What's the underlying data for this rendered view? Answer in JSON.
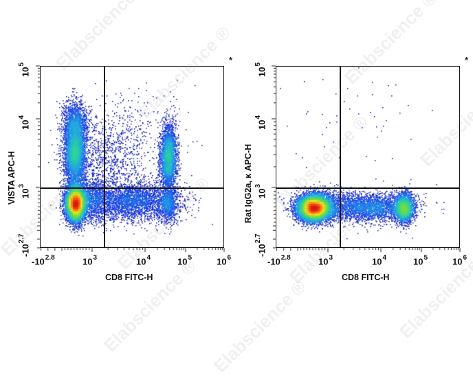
{
  "watermark": "Elabscience",
  "watermark_mark": "®",
  "chart_data": [
    {
      "type": "scatter",
      "subtype": "flow-cytometry-density-dot-plot",
      "title": "",
      "xlabel": "CD8 FITC-H",
      "ylabel": "VISTA APC-H",
      "x_scale": "biexponential",
      "y_scale": "biexponential",
      "x_ticks": [
        {
          "base": "-10",
          "exp": "2.8"
        },
        {
          "base": "10",
          "exp": "3"
        },
        {
          "base": "10",
          "exp": "4"
        },
        {
          "base": "10",
          "exp": "5"
        },
        {
          "base": "10",
          "exp": "6"
        }
      ],
      "y_ticks": [
        {
          "base": "-10",
          "exp": "2.7"
        },
        {
          "base": "10",
          "exp": "3"
        },
        {
          "base": "10",
          "exp": "4"
        },
        {
          "base": "10",
          "exp": "5"
        }
      ],
      "gate": {
        "x": 1800,
        "y": 1000
      },
      "marker": "*",
      "populations": [
        {
          "name": "CD8- VISTA- (dense, red core)",
          "x_center": 420,
          "y_center": 600,
          "density": "high"
        },
        {
          "name": "CD8- VISTA+ (green)",
          "x_center": 420,
          "y_center": 3500,
          "density": "medium"
        },
        {
          "name": "CD8+ VISTA+ (green column)",
          "x_center": 35000,
          "y_center": 2800,
          "density": "medium"
        },
        {
          "name": "CD8 intermediate bridge (blue)",
          "x_center": 6000,
          "y_center": 650,
          "density": "low"
        }
      ]
    },
    {
      "type": "scatter",
      "subtype": "flow-cytometry-density-dot-plot",
      "title": "",
      "xlabel": "CD8 FITC-H",
      "ylabel": "Rat IgG2a, κ APC-H",
      "x_scale": "biexponential",
      "y_scale": "biexponential",
      "x_ticks": [
        {
          "base": "-10",
          "exp": "2.8"
        },
        {
          "base": "10",
          "exp": "3"
        },
        {
          "base": "10",
          "exp": "4"
        },
        {
          "base": "10",
          "exp": "5"
        },
        {
          "base": "10",
          "exp": "6"
        }
      ],
      "y_ticks": [
        {
          "base": "-10",
          "exp": "2.7"
        },
        {
          "base": "10",
          "exp": "3"
        },
        {
          "base": "10",
          "exp": "4"
        },
        {
          "base": "10",
          "exp": "5"
        }
      ],
      "gate": {
        "x": 1800,
        "y": 1000
      },
      "marker": "*",
      "populations": [
        {
          "name": "CD8- isotype (dense, red core)",
          "x_center": 520,
          "y_center": 500,
          "density": "high"
        },
        {
          "name": "CD8 intermediate bridge (blue)",
          "x_center": 6000,
          "y_center": 500,
          "density": "low"
        },
        {
          "name": "CD8+ isotype (green)",
          "x_center": 35000,
          "y_center": 500,
          "density": "medium"
        }
      ]
    }
  ],
  "panels": [
    {
      "ylabel": "VISTA APC-H",
      "xlabel": "CD8 FITC-H",
      "marker": "*"
    },
    {
      "ylabel": "Rat IgG2a, κ APC-H",
      "xlabel": "CD8 FITC-H",
      "marker": "*"
    }
  ]
}
